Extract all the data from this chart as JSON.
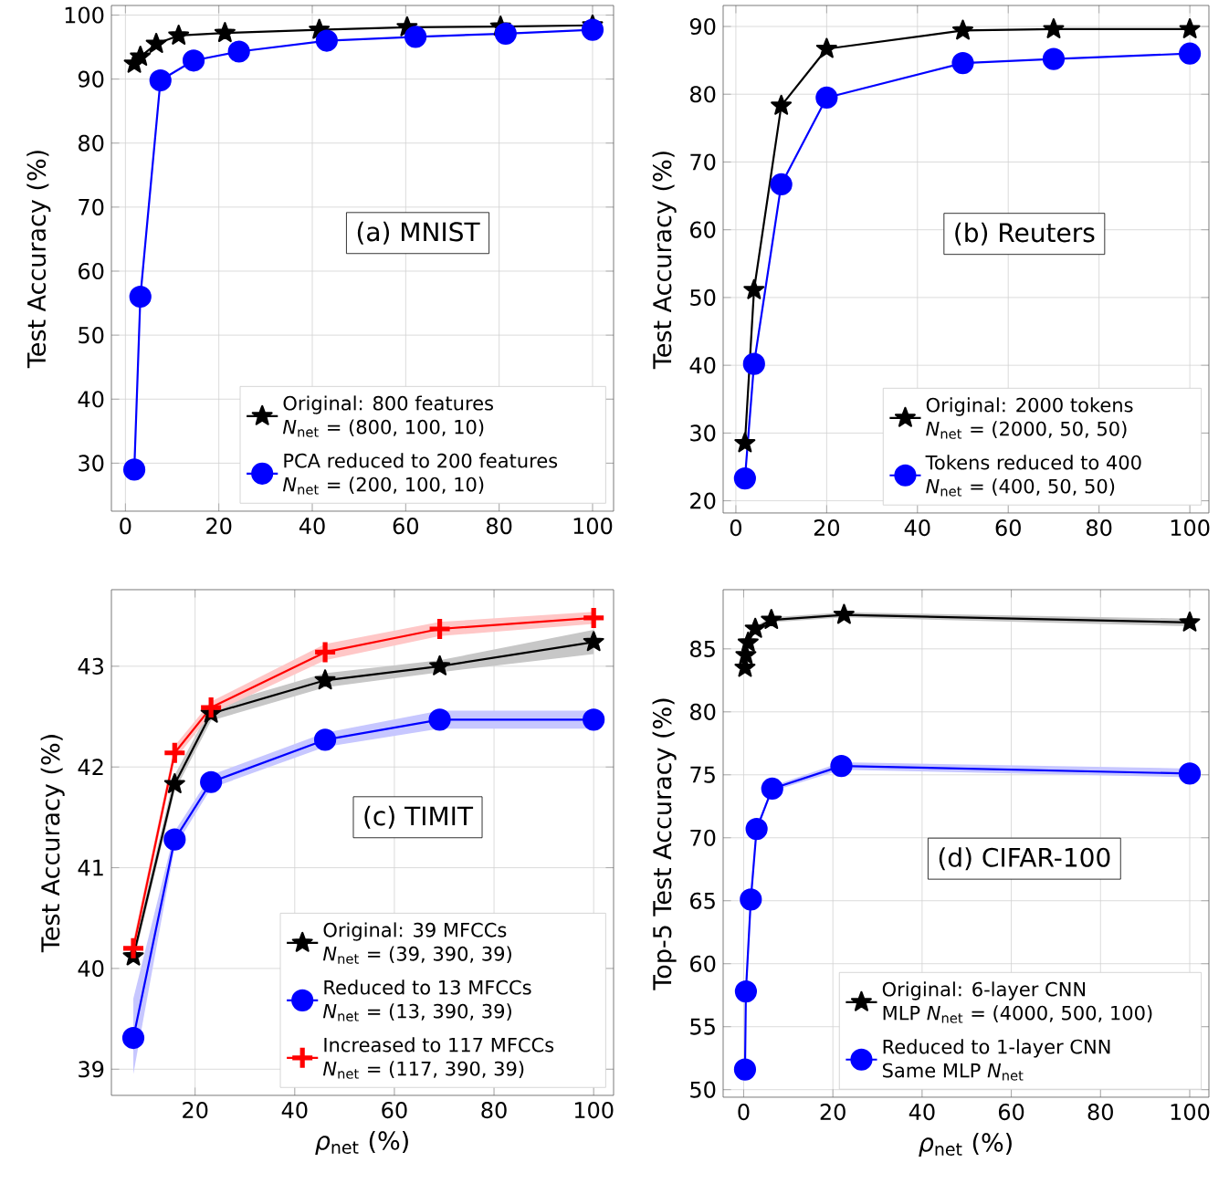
{
  "chart_data": [
    {
      "type": "line",
      "annotations": [
        "(a) MNIST"
      ],
      "ylabel": "Test Accuracy (%)",
      "xlim": [
        -3,
        104.5
      ],
      "ylim": [
        22.5,
        101.5
      ],
      "xticks": [
        0,
        20,
        40,
        60,
        80,
        100
      ],
      "yticks": [
        30,
        40,
        50,
        60,
        70,
        80,
        90,
        100
      ],
      "grid": true,
      "legend": "bottom right",
      "series": [
        {
          "name": "Original: 800 features *N*$_{net}$ = (800, 100, 10)",
          "color": "#000000",
          "marker": "star",
          "x": [
            1.9,
            3.2,
            6.6,
            11.4,
            21.3,
            41.5,
            60.3,
            80.3,
            100
          ],
          "values": [
            92.4,
            93.5,
            95.5,
            96.8,
            97.2,
            97.7,
            98.1,
            98.2,
            98.4
          ]
        },
        {
          "name": "PCA reduced to 200 features *N*$_{net}$ = (200, 100, 10)",
          "color": "#0000ff",
          "marker": "circle",
          "x": [
            1.9,
            3.2,
            7.5,
            14.6,
            24.3,
            43.1,
            62.1,
            81.4,
            100
          ],
          "values": [
            29,
            56,
            89.8,
            92.9,
            94.3,
            96.0,
            96.6,
            97.1,
            97.7
          ]
        }
      ]
    },
    {
      "type": "line",
      "annotations": [
        "(b) Reuters"
      ],
      "ylabel": "Test Accuracy (%)",
      "xlim": [
        -2.8,
        104.2
      ],
      "ylim": [
        18.2,
        93.1
      ],
      "xticks": [
        0,
        20,
        40,
        60,
        80,
        100
      ],
      "yticks": [
        20,
        30,
        40,
        50,
        60,
        70,
        80,
        90
      ],
      "grid": true,
      "legend": "bottom right",
      "series": [
        {
          "name": "Original: 2000 tokens *N*$_{net}$ = (2000, 50, 50)",
          "color": "#000000",
          "marker": "star",
          "x": [
            2,
            4,
            10,
            20,
            50,
            70,
            100
          ],
          "values": [
            28.5,
            51.1,
            78.3,
            86.7,
            89.4,
            89.6,
            89.6
          ]
        },
        {
          "name": "Tokens reduced to 400 *N*$_{net}$ = (400, 50, 50)",
          "color": "#0000ff",
          "marker": "circle",
          "x": [
            2,
            4,
            10,
            20,
            50,
            70,
            100
          ],
          "values": [
            23.3,
            40.2,
            66.7,
            79.5,
            84.6,
            85.2,
            86.0
          ]
        }
      ]
    },
    {
      "type": "line",
      "annotations": [
        "(c) TIMIT"
      ],
      "xlabel": "*ρ*$_{net}$ (%)",
      "ylabel": "Test Accuracy (%)",
      "xlim": [
        3.2,
        104
      ],
      "ylim": [
        38.74,
        43.76
      ],
      "xticks": [
        20,
        40,
        60,
        80,
        100
      ],
      "yticks": [
        39,
        40,
        41,
        42,
        43
      ],
      "grid": true,
      "legend": "bottom right",
      "series": [
        {
          "name": "Original: 39 MFCCs *N*$_{net}$ = (39, 390, 39)",
          "color": "#000000",
          "marker": "star",
          "x": [
            7.6,
            15.9,
            23.2,
            46.1,
            69.1,
            100
          ],
          "values": [
            40.12,
            41.83,
            42.53,
            42.86,
            43.0,
            43.24
          ],
          "lower": [
            40.05,
            41.76,
            42.46,
            42.79,
            42.94,
            43.12
          ],
          "upper": [
            40.2,
            41.92,
            42.6,
            42.93,
            43.06,
            43.36
          ]
        },
        {
          "name": "Reduced to 13 MFCCs *N*$_{net}$ = (13, 390, 39)",
          "color": "#0000ff",
          "marker": "circle",
          "x": [
            7.6,
            15.9,
            23.2,
            46.1,
            69.1,
            100
          ],
          "values": [
            39.31,
            41.28,
            41.85,
            42.27,
            42.47,
            42.47
          ],
          "lower": [
            38.95,
            41.2,
            41.79,
            42.2,
            42.38,
            42.38
          ],
          "upper": [
            39.7,
            41.36,
            41.92,
            42.34,
            42.56,
            42.56
          ]
        },
        {
          "name": "Increased to 117 MFCCs *N*$_{net}$ = (117, 390, 39)",
          "color": "#ff0000",
          "marker": "cross",
          "x": [
            7.6,
            15.9,
            23.2,
            46.1,
            69.1,
            100
          ],
          "values": [
            40.2,
            42.14,
            42.59,
            43.14,
            43.37,
            43.48
          ],
          "lower": [
            40.12,
            42.07,
            42.53,
            43.06,
            43.3,
            43.42
          ],
          "upper": [
            40.28,
            42.21,
            42.65,
            43.22,
            43.44,
            43.54
          ]
        }
      ]
    },
    {
      "type": "line",
      "annotations": [
        "(d) CIFAR-100"
      ],
      "xlabel": "*ρ*$_{net}$ (%)",
      "ylabel": "Top-5 Test Accuracy (%)",
      "xlim": [
        -4.6,
        104.3
      ],
      "ylim": [
        49.4,
        89.7
      ],
      "xticks": [
        0,
        20,
        40,
        60,
        80,
        100
      ],
      "yticks": [
        50,
        55,
        60,
        65,
        70,
        75,
        80,
        85
      ],
      "grid": true,
      "legend": "bottom right",
      "series": [
        {
          "name": "Original: 6-layer CNN MLP *N*$_{net}$ = (4000, 500, 100)",
          "color": "#000000",
          "marker": "star",
          "x": [
            0.3,
            0.5,
            1.0,
            2.6,
            6.2,
            22.5,
            100
          ],
          "values": [
            83.5,
            84.5,
            85.5,
            86.6,
            87.3,
            87.7,
            87.1
          ],
          "lower": [
            83.3,
            84.3,
            85.3,
            86.4,
            87.1,
            87.5,
            86.8
          ],
          "upper": [
            83.7,
            84.7,
            85.7,
            86.8,
            87.5,
            87.9,
            87.4
          ]
        },
        {
          "name": "Reduced to 1-layer CNN Same MLP *N*$_{net}$",
          "color": "#0000ff",
          "marker": "circle",
          "x": [
            0.3,
            0.5,
            1.6,
            2.9,
            6.4,
            21.9,
            100
          ],
          "values": [
            51.6,
            57.8,
            65.1,
            70.7,
            73.9,
            75.7,
            75.1
          ],
          "lower": [
            51.4,
            57.6,
            64.9,
            70.5,
            73.7,
            75.4,
            74.8
          ],
          "upper": [
            51.8,
            58.0,
            65.3,
            70.9,
            74.1,
            76.0,
            75.5
          ]
        }
      ]
    }
  ]
}
